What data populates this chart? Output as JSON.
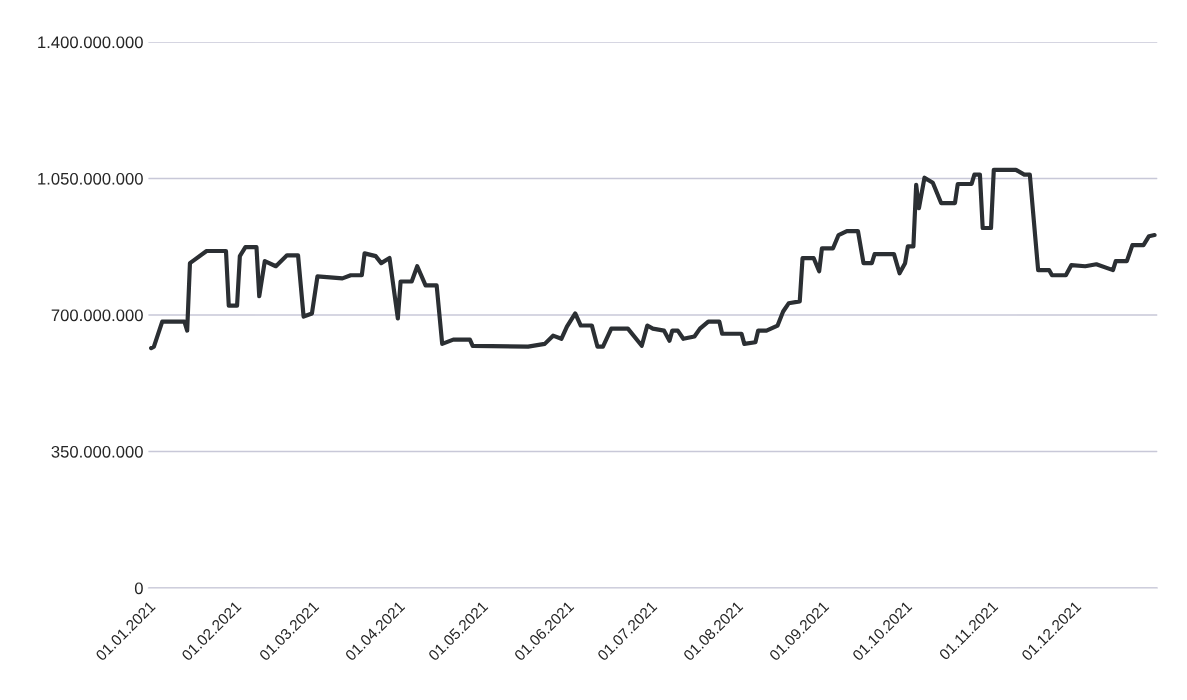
{
  "chart_data": {
    "type": "line",
    "x": [
      "2021-01-02",
      "2021-01-03",
      "2021-01-06",
      "2021-01-14",
      "2021-01-15",
      "2021-01-16",
      "2021-01-22",
      "2021-01-29",
      "2021-01-30",
      "2021-02-02",
      "2021-02-03",
      "2021-02-05",
      "2021-02-09",
      "2021-02-10",
      "2021-02-12",
      "2021-02-16",
      "2021-02-20",
      "2021-02-24",
      "2021-02-26",
      "2021-03-01",
      "2021-03-03",
      "2021-03-12",
      "2021-03-15",
      "2021-03-19",
      "2021-03-20",
      "2021-03-24",
      "2021-03-26",
      "2021-03-29",
      "2021-04-01",
      "2021-04-02",
      "2021-04-06",
      "2021-04-08",
      "2021-04-11",
      "2021-04-15",
      "2021-04-17",
      "2021-04-21",
      "2021-04-27",
      "2021-04-28",
      "2021-05-18",
      "2021-05-24",
      "2021-05-27",
      "2021-05-30",
      "2021-06-01",
      "2021-06-04",
      "2021-06-06",
      "2021-06-10",
      "2021-06-12",
      "2021-06-14",
      "2021-06-17",
      "2021-06-23",
      "2021-06-28",
      "2021-06-30",
      "2021-07-02",
      "2021-07-06",
      "2021-07-08",
      "2021-07-09",
      "2021-07-11",
      "2021-07-13",
      "2021-07-17",
      "2021-07-19",
      "2021-07-22",
      "2021-07-26",
      "2021-07-27",
      "2021-08-03",
      "2021-08-04",
      "2021-08-08",
      "2021-08-09",
      "2021-08-12",
      "2021-08-16",
      "2021-08-18",
      "2021-08-20",
      "2021-08-24",
      "2021-08-25",
      "2021-08-29",
      "2021-08-31",
      "2021-09-01",
      "2021-09-05",
      "2021-09-07",
      "2021-09-10",
      "2021-09-14",
      "2021-09-16",
      "2021-09-19",
      "2021-09-20",
      "2021-09-27",
      "2021-09-29",
      "2021-10-01",
      "2021-10-02",
      "2021-10-04",
      "2021-10-05",
      "2021-10-06",
      "2021-10-08",
      "2021-10-11",
      "2021-10-14",
      "2021-10-19",
      "2021-10-20",
      "2021-10-25",
      "2021-10-26",
      "2021-10-28",
      "2021-10-29",
      "2021-11-01",
      "2021-11-02",
      "2021-11-10",
      "2021-11-13",
      "2021-11-15",
      "2021-11-18",
      "2021-11-22",
      "2021-11-23",
      "2021-11-28",
      "2021-11-30",
      "2021-12-05",
      "2021-12-09",
      "2021-12-15",
      "2021-12-16",
      "2021-12-20",
      "2021-12-22",
      "2021-12-26",
      "2021-12-28",
      "2021-12-30"
    ],
    "series": [
      {
        "color": "#2b2f33",
        "values": [
          615000000,
          619000000,
          683000000,
          683000000,
          660000000,
          833000000,
          864000000,
          864000000,
          724000000,
          724000000,
          851000000,
          874000000,
          874000000,
          748000000,
          838000000,
          825000000,
          853000000,
          853000000,
          696000000,
          704000000,
          799000000,
          794000000,
          802000000,
          802000000,
          858000000,
          851000000,
          833000000,
          846000000,
          691000000,
          786000000,
          786000000,
          825000000,
          776000000,
          776000000,
          626000000,
          637000000,
          637000000,
          621000000,
          619000000,
          626000000,
          647000000,
          639000000,
          670000000,
          704000000,
          673000000,
          673000000,
          619000000,
          619000000,
          665000000,
          665000000,
          621000000,
          673000000,
          665000000,
          660000000,
          634000000,
          660000000,
          660000000,
          639000000,
          645000000,
          665000000,
          683000000,
          683000000,
          652000000,
          652000000,
          626000000,
          630000000,
          660000000,
          660000000,
          673000000,
          709000000,
          730000000,
          735000000,
          846000000,
          846000000,
          812000000,
          871000000,
          871000000,
          905000000,
          915000000,
          915000000,
          833000000,
          833000000,
          856000000,
          856000000,
          807000000,
          833000000,
          876000000,
          876000000,
          1034000000,
          974000000,
          1052000000,
          1039000000,
          987000000,
          987000000,
          1036000000,
          1036000000,
          1060000000,
          1060000000,
          923000000,
          923000000,
          1072000000,
          1072000000,
          1060000000,
          1060000000,
          815000000,
          815000000,
          802000000,
          802000000,
          828000000,
          825000000,
          830000000,
          815000000,
          838000000,
          838000000,
          879000000,
          879000000,
          902000000,
          905000000
        ]
      }
    ],
    "xlim": [
      "2021-01-01",
      "2021-12-31"
    ],
    "xticks": [
      {
        "value": "2021-01-01",
        "label": "01.01.2021"
      },
      {
        "value": "2021-02-01",
        "label": "01.02.2021"
      },
      {
        "value": "2021-03-01",
        "label": "01.03.2021"
      },
      {
        "value": "2021-04-01",
        "label": "01.04.2021"
      },
      {
        "value": "2021-05-01",
        "label": "01.05.2021"
      },
      {
        "value": "2021-06-01",
        "label": "01.06.2021"
      },
      {
        "value": "2021-07-01",
        "label": "01.07.2021"
      },
      {
        "value": "2021-08-01",
        "label": "01.08.2021"
      },
      {
        "value": "2021-09-01",
        "label": "01.09.2021"
      },
      {
        "value": "2021-10-01",
        "label": "01.10.2021"
      },
      {
        "value": "2021-11-01",
        "label": "01.11.2021"
      },
      {
        "value": "2021-12-01",
        "label": "01.12.2021"
      }
    ],
    "ylim": [
      0,
      1400000000
    ],
    "yticks": [
      0,
      {
        "value": 350000000,
        "label": "350.000.000"
      },
      {
        "value": 700000000,
        "label": "700.000.000"
      },
      {
        "value": 1050000000,
        "label": "1.050.000.000"
      },
      {
        "value": 1400000000,
        "label": "1.400.000.000"
      }
    ],
    "grid": "y",
    "marker": "none",
    "line_style": "solid"
  }
}
